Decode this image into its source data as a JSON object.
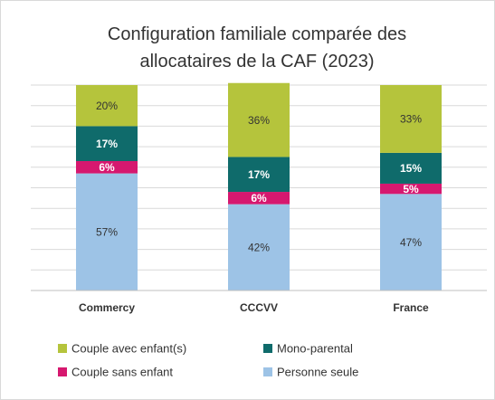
{
  "chart_data": {
    "type": "stacked_bar",
    "title": "Configuration familiale comparée des allocataires de la CAF (2023)",
    "categories": [
      "Commercy",
      "CCCVV",
      "France"
    ],
    "series": [
      {
        "name": "Personne seule",
        "color": "#9dc3e6",
        "label_color": "#333333",
        "values": [
          57,
          42,
          47
        ],
        "value_labels": [
          "57%",
          "42%",
          "47%"
        ]
      },
      {
        "name": "Couple sans enfant",
        "color": "#d6186f",
        "label_color": "#ffffff",
        "values": [
          6,
          6,
          5
        ],
        "value_labels": [
          "6%",
          "6%",
          "5%"
        ]
      },
      {
        "name": "Mono-parental",
        "color": "#0f6b6b",
        "label_color": "#ffffff",
        "values": [
          17,
          17,
          15
        ],
        "value_labels": [
          "17%",
          "17%",
          "15%"
        ]
      },
      {
        "name": "Couple avec enfant(s)",
        "color": "#b5c43c",
        "label_color": "#333333",
        "values": [
          20,
          36,
          33
        ],
        "value_labels": [
          "20%",
          "36%",
          "33%"
        ]
      }
    ],
    "ylim": [
      0,
      100
    ],
    "yticks": [
      0,
      10,
      20,
      30,
      40,
      50,
      60,
      70,
      80,
      90,
      100
    ],
    "grid": true
  }
}
